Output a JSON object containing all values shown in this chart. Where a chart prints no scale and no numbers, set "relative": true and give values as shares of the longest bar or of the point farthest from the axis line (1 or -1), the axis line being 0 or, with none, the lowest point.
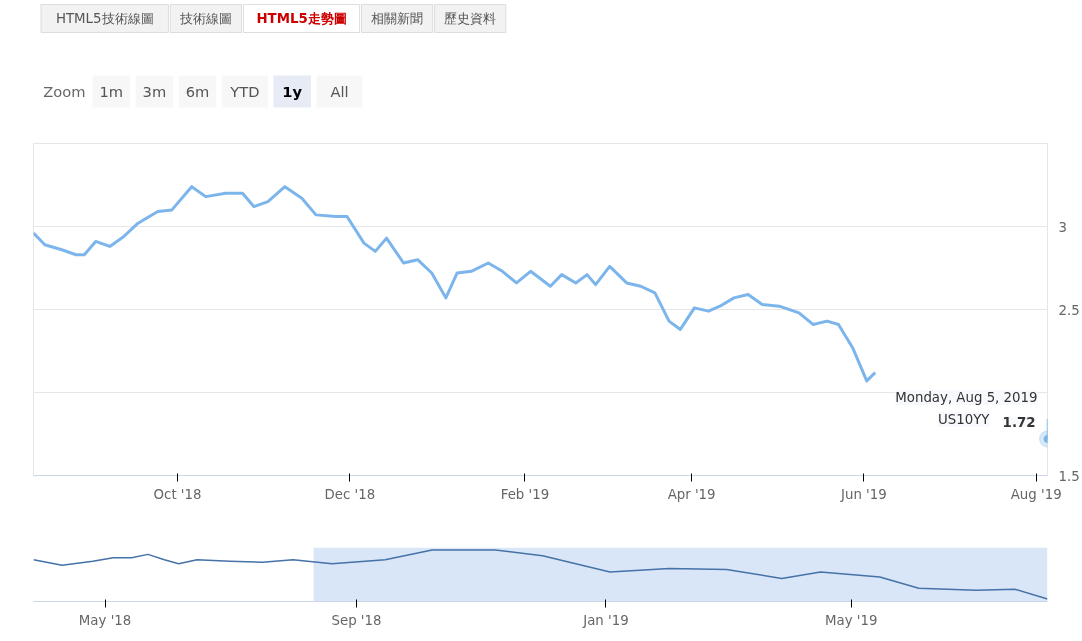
{
  "chart_data": [
    {
      "type": "other",
      "annotations": [
        "HTML5技術線圖",
        "技術線圖",
        "HTML5走勢圖",
        "相關新聞",
        "歷史資料"
      ]
    },
    {
      "type": "other",
      "title": "Zoom",
      "annotations": [
        "1m",
        "3m",
        "6m",
        "YTD",
        "1y",
        "All"
      ]
    },
    {
      "type": "line",
      "x": [
        "2018-08-11",
        "2018-08-15",
        "2018-08-21",
        "2018-08-26",
        "2018-08-29",
        "2018-09-02",
        "2018-09-07",
        "2018-09-12",
        "2018-09-17",
        "2018-09-24",
        "2018-09-29",
        "2018-10-06",
        "2018-10-11",
        "2018-10-18",
        "2018-10-24",
        "2018-10-28",
        "2018-11-02",
        "2018-11-08",
        "2018-11-14",
        "2018-11-19",
        "2018-11-26",
        "2018-11-30",
        "2018-12-06",
        "2018-12-10",
        "2018-12-14",
        "2018-12-20",
        "2018-12-25",
        "2018-12-30",
        "2019-01-04",
        "2019-01-08",
        "2019-01-13",
        "2019-01-19",
        "2019-01-24",
        "2019-01-29",
        "2019-02-03",
        "2019-02-10",
        "2019-02-14",
        "2019-02-19",
        "2019-02-23",
        "2019-02-26",
        "2019-03-03",
        "2019-03-09",
        "2019-03-14",
        "2019-03-19",
        "2019-03-24",
        "2019-03-28",
        "2019-04-02",
        "2019-04-07",
        "2019-04-11",
        "2019-04-16",
        "2019-04-21",
        "2019-04-26",
        "2019-05-02",
        "2019-05-09",
        "2019-05-14",
        "2019-05-19",
        "2019-05-23",
        "2019-05-28",
        "2019-06-02",
        "2019-06-05",
        "2019-07-01",
        "2019-08-05"
      ],
      "series": [
        {
          "name": "US10YY",
          "color": "#7cb5ec",
          "value_labels": [
            null,
            null,
            null,
            null,
            null,
            null,
            null,
            null,
            null,
            null,
            null,
            null,
            null,
            null,
            null,
            null,
            null,
            null,
            null,
            null,
            null,
            null,
            null,
            null,
            null,
            null,
            null,
            null,
            null,
            null,
            null,
            null,
            null,
            null,
            null,
            null,
            null,
            null,
            null,
            null,
            null,
            null,
            null,
            null,
            null,
            null,
            null,
            null,
            null,
            null,
            null,
            null,
            null,
            null,
            null,
            null,
            null,
            null,
            null,
            null,
            null,
            "1.72"
          ],
          "values": [
            2.96,
            2.89,
            2.86,
            2.83,
            2.83,
            2.91,
            2.88,
            2.94,
            3.02,
            3.09,
            3.1,
            3.24,
            3.18,
            3.2,
            3.2,
            3.12,
            3.15,
            3.24,
            3.17,
            3.07,
            3.06,
            3.06,
            2.9,
            2.85,
            2.93,
            2.78,
            2.8,
            2.72,
            2.57,
            2.72,
            2.73,
            2.78,
            2.73,
            2.66,
            2.73,
            2.64,
            2.71,
            2.66,
            2.71,
            2.65,
            2.76,
            2.66,
            2.64,
            2.6,
            2.43,
            2.38,
            2.51,
            2.49,
            2.52,
            2.57,
            2.59,
            2.53,
            2.52,
            2.48,
            2.41,
            2.43,
            2.41,
            2.27,
            2.07,
            2.12,
            null,
            1.72
          ]
        }
      ],
      "annotations": [
        {
          "text": "Monday, Aug 5, 2019",
          "x": "2019-08-05",
          "y": 1.72
        }
      ],
      "xlim": [
        "2018-08-11",
        "2019-08-05"
      ],
      "xticks": [
        {
          "value": "2018-10-01",
          "label": "Oct '18"
        },
        {
          "value": "2018-12-01",
          "label": "Dec '18"
        },
        {
          "value": "2019-02-01",
          "label": "Feb '19"
        },
        {
          "value": "2019-04-01",
          "label": "Apr '19"
        },
        {
          "value": "2019-06-01",
          "label": "Jun '19"
        },
        {
          "value": "2019-08-01",
          "label": "Aug '19"
        }
      ],
      "ylim": [
        1.5,
        3.5
      ],
      "yticks": [
        1.5,
        {
          "value": 2,
          "label": null
        },
        2.5,
        3,
        {
          "value": 3.5,
          "label": null
        }
      ],
      "grid": "y",
      "marker": "none",
      "line_style": "solid"
    },
    {
      "type": "line",
      "relative": true,
      "x": [
        "2018-03-27",
        "2018-04-10",
        "2018-04-25",
        "2018-05-05",
        "2018-05-14",
        "2018-05-22",
        "2018-05-30",
        "2018-06-06",
        "2018-06-15",
        "2018-07-01",
        "2018-07-17",
        "2018-08-01",
        "2018-08-20",
        "2018-09-15",
        "2018-10-08",
        "2018-11-08",
        "2018-12-01",
        "2019-01-03",
        "2019-02-01",
        "2019-03-01",
        "2019-03-28",
        "2019-04-16",
        "2019-05-15",
        "2019-06-03",
        "2019-07-01",
        "2019-07-20",
        "2019-08-05"
      ],
      "series": [
        {
          "color": "#4572a7",
          "values": [
            0.8,
            0.69,
            0.77,
            0.84,
            0.84,
            0.91,
            0.8,
            0.72,
            0.8,
            0.77,
            0.75,
            0.8,
            0.72,
            0.8,
            1.0,
            1.0,
            0.88,
            0.55,
            0.62,
            0.6,
            0.42,
            0.55,
            0.45,
            0.22,
            0.18,
            0.2,
            0
          ]
        }
      ],
      "xlim": [
        "2018-03-27",
        "2019-08-05"
      ],
      "xticks": [
        {
          "value": "2018-05-01",
          "label": "May '18"
        },
        {
          "value": "2018-09-01",
          "label": "Sep '18"
        },
        {
          "value": "2019-01-01",
          "label": "Jan '19"
        },
        {
          "value": "2019-05-01",
          "label": "May '19"
        }
      ],
      "bands": [
        {
          "axis": "x",
          "from": "2018-08-11",
          "to": "2019-08-05",
          "color": "#cfe0f5"
        }
      ],
      "grid": false,
      "marker": "none",
      "line_style": "solid"
    }
  ]
}
